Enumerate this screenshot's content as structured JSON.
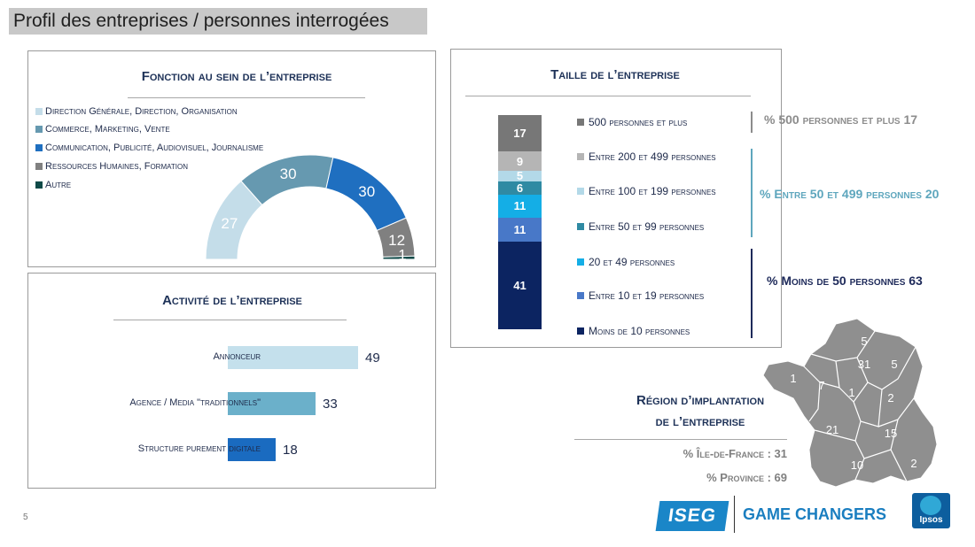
{
  "page": {
    "title": "Profil des entreprises / personnes interrogées",
    "page_number": "5"
  },
  "function_panel": {
    "title": "Fonction au sein de l’entreprise",
    "legend": [
      {
        "label": "Direction Générale, Direction, Organisation",
        "color": "#c4dde9"
      },
      {
        "label": "Commerce, Marketing, Vente",
        "color": "#6699b0"
      },
      {
        "label": "Communication, Publicité, Audiovisuel, Journalisme",
        "color": "#1f6fc0"
      },
      {
        "label": "Ressources Humaines, Formation",
        "color": "#808080"
      },
      {
        "label": "Autre",
        "color": "#0f4a48"
      }
    ]
  },
  "activity_panel": {
    "title": "Activité de l’entreprise"
  },
  "size_panel": {
    "title": "Taille de l’entreprise",
    "legend": [
      {
        "label": "500 personnes et plus",
        "color": "#777777"
      },
      {
        "label": "Entre 200 et 499 personnes",
        "color": "#b5b5b5"
      },
      {
        "label": "Entre 100 et 199 personnes",
        "color": "#b3d9e8"
      },
      {
        "label": "Entre 50 et 99 personnes",
        "color": "#2f8aa3"
      },
      {
        "label": "20 et 49 personnes",
        "color": "#14aee6"
      },
      {
        "label": "Entre 10 et 19 personnes",
        "color": "#4878c8"
      },
      {
        "label": "Moins de 10 personnes",
        "color": "#0c2461"
      }
    ],
    "groups": [
      {
        "label": "% 500 personnes et plus 17",
        "color": "#8c8c8c"
      },
      {
        "label": "% Entre 50 et 499 personnes 20",
        "color": "#5ea6bd"
      },
      {
        "label": "% Moins de 50 personnes 63",
        "color": "#1e2a5a"
      }
    ]
  },
  "region_panel": {
    "title_line1": "Région d’implantation",
    "title_line2": "de l’entreprise",
    "stat_idf": "% Île-de-France : 31",
    "stat_province": "% Province : 69",
    "map_values": [
      "5",
      "31",
      "5",
      "1",
      "7",
      "1",
      "2",
      "21",
      "15",
      "10",
      "2"
    ],
    "map_color": "#8f8f8f"
  },
  "logos": {
    "iseg": "ISEG",
    "game_changers": "GAME CHANGERS",
    "ipsos": "Ipsos"
  },
  "chart_data": [
    {
      "type": "pie",
      "title": "Fonction au sein de l’entreprise",
      "categories": [
        "Direction Générale, Direction, Organisation",
        "Commerce, Marketing, Vente",
        "Communication, Publicité, Audiovisuel, Journalisme",
        "Ressources Humaines, Formation",
        "Autre"
      ],
      "values": [
        27,
        30,
        30,
        12,
        1
      ],
      "colors": [
        "#c4dde9",
        "#6699b0",
        "#1f6fc0",
        "#808080",
        "#0f4a48"
      ]
    },
    {
      "type": "bar",
      "title": "Activité de l’entreprise",
      "categories": [
        "Annonceur",
        "Agence / Media \"traditionnels\"",
        "Structure purement digitale"
      ],
      "values": [
        49,
        33,
        18
      ],
      "colors": [
        "#c4e0ec",
        "#6bb0ca",
        "#1a6bc0"
      ],
      "xlim": [
        0,
        100
      ]
    },
    {
      "type": "bar",
      "stacked": true,
      "title": "Taille de l’entreprise",
      "categories": [
        "500 personnes et plus",
        "Entre 200 et 499 personnes",
        "Entre 100 et 199 personnes",
        "Entre 50 et 99 personnes",
        "20 et 49 personnes",
        "Entre 10 et 19 personnes",
        "Moins de 10 personnes"
      ],
      "values": [
        17,
        9,
        5,
        6,
        11,
        11,
        41
      ],
      "colors": [
        "#777777",
        "#b5b5b5",
        "#b3d9e8",
        "#2f8aa3",
        "#14aee6",
        "#4878c8",
        "#0c2461"
      ]
    }
  ]
}
